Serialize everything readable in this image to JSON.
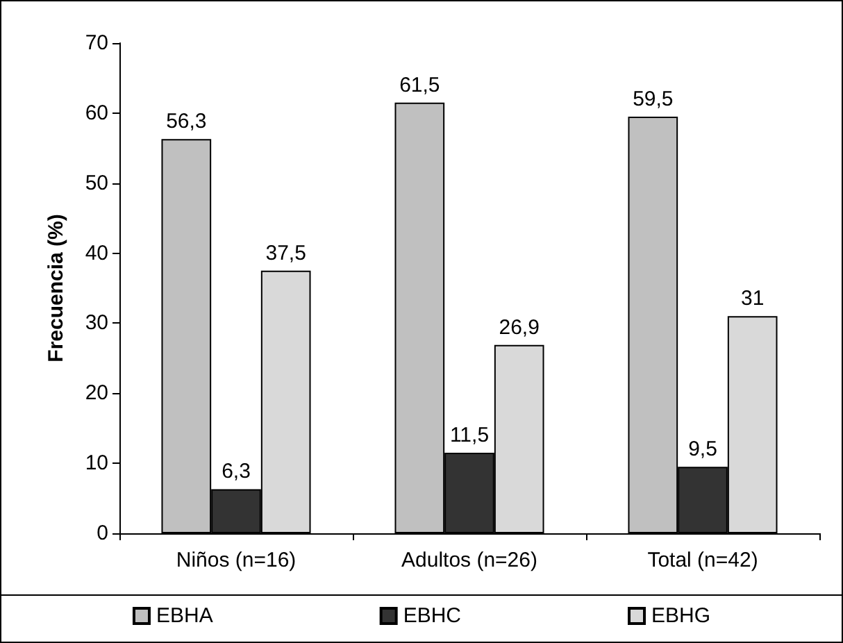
{
  "chart_data": {
    "type": "bar",
    "ylabel": "Frecuencia (%)",
    "categories": [
      "Niños (n=16)",
      "Adultos (n=26)",
      "Total (n=42)"
    ],
    "series": [
      {
        "name": "EBHA",
        "color": "#c0c0c0",
        "values": [
          56.3,
          61.5,
          59.5
        ],
        "value_labels": [
          "56,3",
          "61,5",
          "59,5"
        ]
      },
      {
        "name": "EBHC",
        "color": "#333333",
        "values": [
          6.3,
          11.5,
          9.5
        ],
        "value_labels": [
          "6,3",
          "11,5",
          "9,5"
        ]
      },
      {
        "name": "EBHG",
        "color": "#d9d9d9",
        "values": [
          37.5,
          26.9,
          31
        ],
        "value_labels": [
          "37,5",
          "26,9",
          "31"
        ]
      }
    ],
    "ylim": [
      0,
      70
    ],
    "yticks": [
      0,
      10,
      20,
      30,
      40,
      50,
      60,
      70
    ],
    "grid": false,
    "legend": "bottom"
  }
}
